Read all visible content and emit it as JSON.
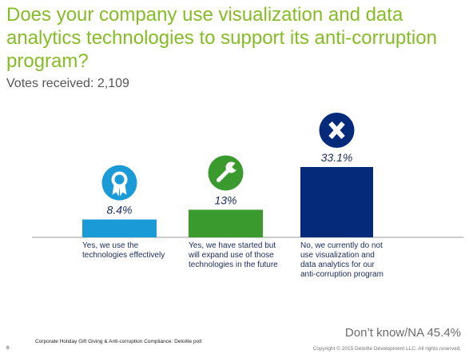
{
  "title": "Does your company use visualization and data analytics technologies to support its anti-corruption program?",
  "subtitle": "Votes received: 2,109",
  "chart_data": {
    "type": "bar",
    "categories": [
      "Yes, we use the technologies effectively",
      "Yes, we have started but will expand use of those technologies in the future",
      "No, we currently do not use visualization and data analytics for our anti-corruption program"
    ],
    "values": [
      8.4,
      13,
      33.1
    ],
    "value_labels": [
      "8.4%",
      "13%",
      "33.1%"
    ],
    "colors": [
      "#1a9ad6",
      "#3a9a2e",
      "#062a7a"
    ],
    "icons": [
      "ribbon-award-icon",
      "wrench-icon",
      "x-icon"
    ],
    "ylim": [
      0,
      36
    ]
  },
  "dont_know": "Don’t know/NA  45.4%",
  "footer": {
    "source": "Corporate Holiday Gift Giving & Anti-corruption Compliance: Deloitte poll",
    "page": "6",
    "copyright": "Copyright © 2015 Deloitte Development LLC. All rights reserved."
  }
}
